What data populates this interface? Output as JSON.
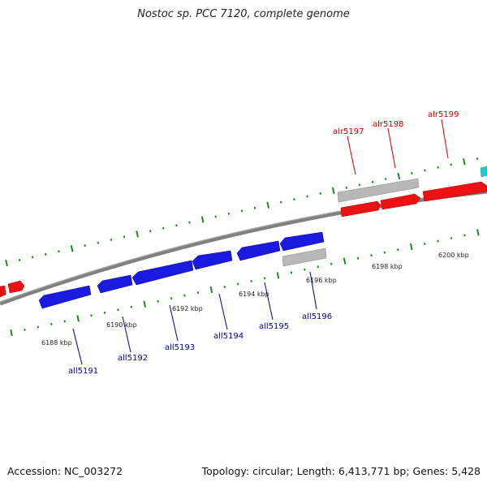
{
  "title": "Nostoc sp. PCC 7120, complete genome",
  "footer": {
    "accession": "Accession: NC_003272",
    "summary": "Topology: circular; Length: 6,413,771 bp; Genes: 5,428"
  },
  "colors": {
    "forward_gene": "#ee1111",
    "reverse_gene": "#1a1ae0",
    "other_feature": "#b8b8b8",
    "highlight": "#22cccc",
    "tick": "#228822",
    "backbone": "#808080",
    "forward_label": "#cc0000",
    "reverse_label": "#00008b"
  },
  "scale_labels": [
    "6188 kbp",
    "6190 kbp",
    "6192 kbp",
    "6194 kbp",
    "6196 kbp",
    "6198 kbp",
    "6200 kbp"
  ],
  "forward_genes": [
    "alr5197",
    "alr5198",
    "alr5199"
  ],
  "reverse_genes": [
    "all5191",
    "all5192",
    "all5193",
    "all5194",
    "all5195",
    "all5196"
  ]
}
